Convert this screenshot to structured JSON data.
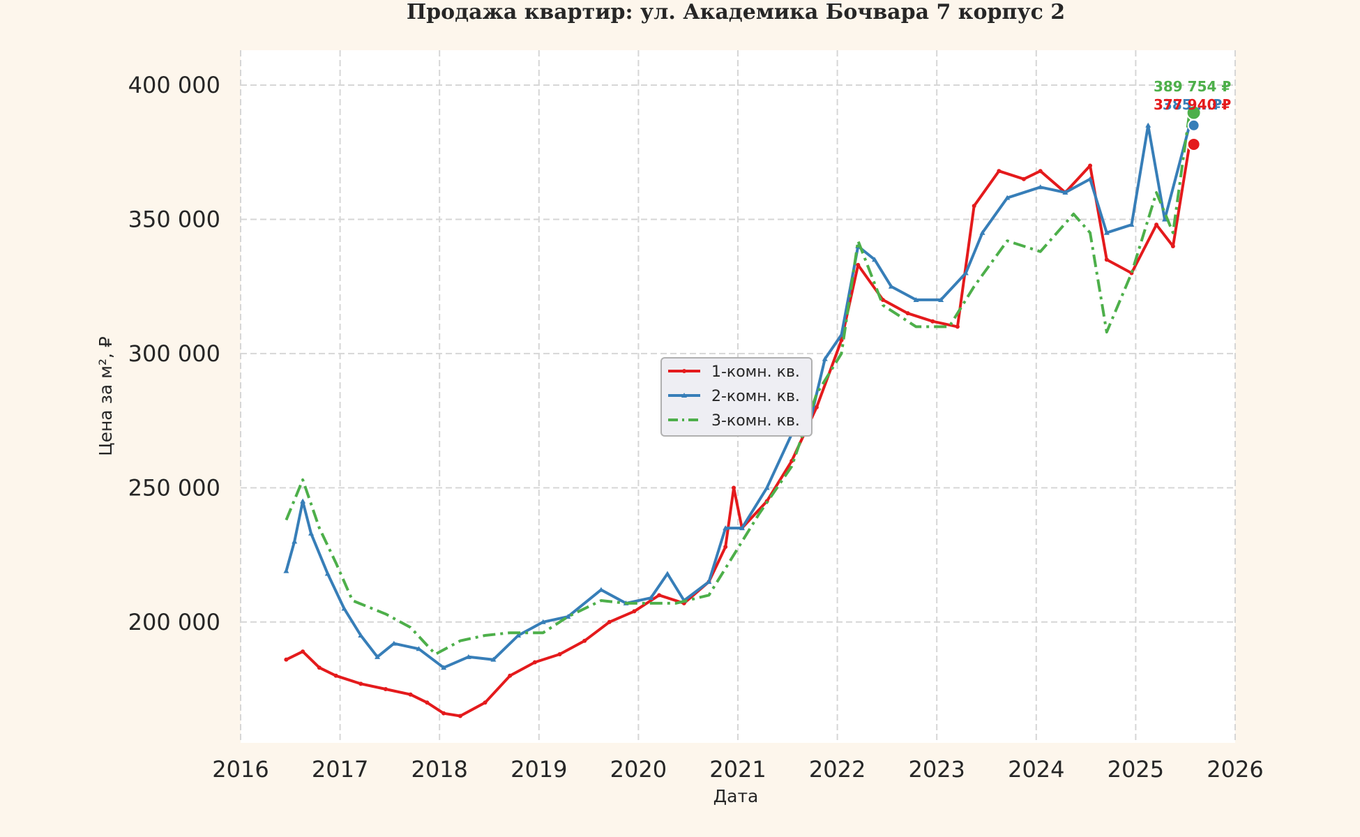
{
  "chart_data": {
    "type": "line",
    "title": "Продажа квартир: ул. Академика Бочвара 7 корпус 2",
    "xlabel": "Дата",
    "ylabel": "Цена за м², ₽",
    "xlim": [
      2016,
      2026
    ],
    "ylim": [
      155000,
      413000
    ],
    "x_ticks": [
      "2016",
      "2017",
      "2018",
      "2019",
      "2020",
      "2021",
      "2022",
      "2023",
      "2024",
      "2025",
      "2026"
    ],
    "y_ticks": [
      {
        "value": 200000,
        "label": "200 000"
      },
      {
        "value": 250000,
        "label": "250 000"
      },
      {
        "value": 300000,
        "label": "300 000"
      },
      {
        "value": 350000,
        "label": "350 000"
      },
      {
        "value": 400000,
        "label": "400 000"
      }
    ],
    "grid": true,
    "legend_position": "center",
    "series": [
      {
        "name": "1-комн. кв.",
        "color": "#e41a1c",
        "dash": "solid",
        "marker": "dot",
        "points": [
          [
            "2016-06",
            186000
          ],
          [
            "2016-08",
            189000
          ],
          [
            "2016-10",
            183000
          ],
          [
            "2016-12",
            180000
          ],
          [
            "2017-03",
            177000
          ],
          [
            "2017-06",
            175000
          ],
          [
            "2017-09",
            173000
          ],
          [
            "2017-11",
            170000
          ],
          [
            "2018-01",
            166000
          ],
          [
            "2018-03",
            165000
          ],
          [
            "2018-06",
            170000
          ],
          [
            "2018-09",
            180000
          ],
          [
            "2018-12",
            185000
          ],
          [
            "2019-03",
            188000
          ],
          [
            "2019-06",
            193000
          ],
          [
            "2019-09",
            200000
          ],
          [
            "2019-12",
            204000
          ],
          [
            "2020-03",
            210000
          ],
          [
            "2020-06",
            207000
          ],
          [
            "2020-09",
            215000
          ],
          [
            "2020-11",
            228000
          ],
          [
            "2020-12",
            250000
          ],
          [
            "2021-01",
            235000
          ],
          [
            "2021-04",
            245000
          ],
          [
            "2021-07",
            260000
          ],
          [
            "2021-10",
            280000
          ],
          [
            "2022-01",
            305000
          ],
          [
            "2022-03",
            333000
          ],
          [
            "2022-06",
            320000
          ],
          [
            "2022-09",
            315000
          ],
          [
            "2022-12",
            312000
          ],
          [
            "2023-03",
            310000
          ],
          [
            "2023-05",
            355000
          ],
          [
            "2023-08",
            368000
          ],
          [
            "2023-11",
            365000
          ],
          [
            "2024-01",
            368000
          ],
          [
            "2024-04",
            360000
          ],
          [
            "2024-07",
            370000
          ],
          [
            "2024-09",
            335000
          ],
          [
            "2024-12",
            330000
          ],
          [
            "2025-03",
            348000
          ],
          [
            "2025-05",
            340000
          ],
          [
            "2025-07",
            377940
          ]
        ]
      },
      {
        "name": "2-комн. кв.",
        "color": "#377eb8",
        "dash": "solid",
        "marker": "triangle",
        "points": [
          [
            "2016-06",
            219000
          ],
          [
            "2016-07",
            230000
          ],
          [
            "2016-08",
            245000
          ],
          [
            "2016-09",
            233000
          ],
          [
            "2016-11",
            218000
          ],
          [
            "2017-01",
            205000
          ],
          [
            "2017-03",
            195000
          ],
          [
            "2017-05",
            187000
          ],
          [
            "2017-07",
            192000
          ],
          [
            "2017-10",
            190000
          ],
          [
            "2018-01",
            183000
          ],
          [
            "2018-04",
            187000
          ],
          [
            "2018-07",
            186000
          ],
          [
            "2018-10",
            195000
          ],
          [
            "2019-01",
            200000
          ],
          [
            "2019-04",
            202000
          ],
          [
            "2019-08",
            212000
          ],
          [
            "2019-11",
            207000
          ],
          [
            "2020-02",
            209000
          ],
          [
            "2020-04",
            218000
          ],
          [
            "2020-06",
            208000
          ],
          [
            "2020-09",
            215000
          ],
          [
            "2020-11",
            235000
          ],
          [
            "2021-01",
            235000
          ],
          [
            "2021-04",
            250000
          ],
          [
            "2021-07",
            270000
          ],
          [
            "2021-09",
            272000
          ],
          [
            "2021-11",
            298000
          ],
          [
            "2022-01",
            307000
          ],
          [
            "2022-03",
            340000
          ],
          [
            "2022-05",
            335000
          ],
          [
            "2022-07",
            325000
          ],
          [
            "2022-10",
            320000
          ],
          [
            "2023-01",
            320000
          ],
          [
            "2023-04",
            330000
          ],
          [
            "2023-06",
            345000
          ],
          [
            "2023-09",
            358000
          ],
          [
            "2024-01",
            362000
          ],
          [
            "2024-04",
            360000
          ],
          [
            "2024-07",
            365000
          ],
          [
            "2024-09",
            345000
          ],
          [
            "2024-12",
            348000
          ],
          [
            "2025-02",
            385000
          ],
          [
            "2025-04",
            350000
          ],
          [
            "2025-07",
            385000
          ]
        ]
      },
      {
        "name": "3-комн. кв.",
        "color": "#4daf4a",
        "dash": "dashdot",
        "marker": "none",
        "points": [
          [
            "2016-06",
            238000
          ],
          [
            "2016-08",
            253000
          ],
          [
            "2016-10",
            235000
          ],
          [
            "2016-12",
            222000
          ],
          [
            "2017-02",
            208000
          ],
          [
            "2017-06",
            203000
          ],
          [
            "2017-09",
            198000
          ],
          [
            "2017-12",
            188000
          ],
          [
            "2018-03",
            193000
          ],
          [
            "2018-06",
            195000
          ],
          [
            "2018-09",
            196000
          ],
          [
            "2019-01",
            196000
          ],
          [
            "2019-04",
            202000
          ],
          [
            "2019-08",
            208000
          ],
          [
            "2019-11",
            207000
          ],
          [
            "2020-02",
            207000
          ],
          [
            "2020-05",
            207000
          ],
          [
            "2020-09",
            210000
          ],
          [
            "2020-12",
            225000
          ],
          [
            "2021-03",
            240000
          ],
          [
            "2021-07",
            258000
          ],
          [
            "2021-10",
            285000
          ],
          [
            "2022-01",
            300000
          ],
          [
            "2022-03",
            342000
          ],
          [
            "2022-06",
            318000
          ],
          [
            "2022-10",
            310000
          ],
          [
            "2023-02",
            310000
          ],
          [
            "2023-05",
            325000
          ],
          [
            "2023-09",
            342000
          ],
          [
            "2024-01",
            338000
          ],
          [
            "2024-05",
            352000
          ],
          [
            "2024-07",
            345000
          ],
          [
            "2024-09",
            308000
          ],
          [
            "2024-12",
            330000
          ],
          [
            "2025-03",
            360000
          ],
          [
            "2025-05",
            345000
          ],
          [
            "2025-07",
            389754
          ]
        ]
      }
    ],
    "end_annotations": [
      {
        "series": "3-комн. кв.",
        "label": "389 754 ₽",
        "value": 389754,
        "color": "#4daf4a"
      },
      {
        "series": "2-комн. кв.",
        "label": "385 ...₽",
        "value": 385000,
        "color": "#377eb8"
      },
      {
        "series": "1-комн. кв.",
        "label": "377 940 ₽",
        "value": 377940,
        "color": "#e41a1c"
      }
    ]
  }
}
